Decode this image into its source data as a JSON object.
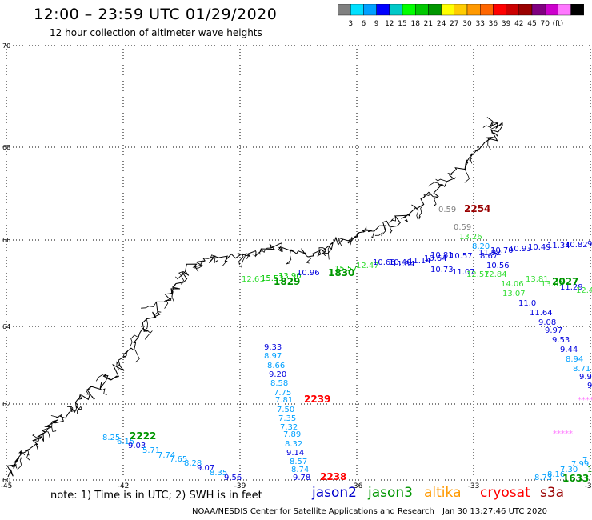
{
  "header": {
    "title": "12:00 – 23:59 UTC 01/29/2020",
    "subtitle": "12 hour collection of altimeter wave heights"
  },
  "colorbar": {
    "colors": [
      "#808080",
      "#00e0ff",
      "#00a0ff",
      "#0000ff",
      "#00c8c8",
      "#00ff00",
      "#00c800",
      "#009600",
      "#ffff00",
      "#ffcc00",
      "#ff9900",
      "#ff6600",
      "#ff0000",
      "#cc0000",
      "#990000",
      "#800080",
      "#cc00cc",
      "#ff77ff",
      "#000000"
    ],
    "labels": [
      "3",
      "6",
      "9",
      "12",
      "15",
      "18",
      "21",
      "24",
      "27",
      "30",
      "33",
      "36",
      "39",
      "42",
      "45",
      "70",
      "(ft)"
    ]
  },
  "map": {
    "lat_ticks": [
      "70",
      "68",
      "66",
      "64",
      "62",
      "60"
    ],
    "lon_ticks": [
      "-45",
      "-42",
      "-39",
      "-36",
      "-33",
      "-30"
    ],
    "gridlines": true,
    "coastline": "Greenland east coast"
  },
  "tracks": [
    {
      "satellite": "jason3",
      "time": "1829",
      "color": "#009600",
      "values": [
        {
          "text": "12.61",
          "color": "#33dd33"
        },
        {
          "text": "15.53",
          "color": "#00c800"
        },
        {
          "text": "13.90",
          "color": "#00c800"
        },
        {
          "text": "10.96",
          "color": "#0000dd"
        },
        {
          "text": "15.57",
          "color": "#00c800"
        },
        {
          "text": "12.47",
          "color": "#33dd33"
        },
        {
          "text": "10.68",
          "color": "#0000dd"
        },
        {
          "text": "10.40",
          "color": "#0000dd"
        },
        {
          "text": "11.84",
          "color": "#0000dd"
        },
        {
          "text": "11.14",
          "color": "#0000dd"
        },
        {
          "text": "10.64",
          "color": "#0000dd"
        },
        {
          "text": "10.81",
          "color": "#0000dd"
        },
        {
          "text": "10.73",
          "color": "#0000dd"
        }
      ]
    },
    {
      "satellite": "jason3",
      "time": "1830",
      "color": "#009600"
    },
    {
      "satellite": "cryosat",
      "time": "2254",
      "color": "#990000",
      "values": [
        {
          "text": "0.59",
          "color": "#808080"
        }
      ]
    },
    {
      "satellite": "jason3",
      "time": "2027",
      "color": "#009600",
      "values": [
        {
          "text": "0.59",
          "color": "#808080"
        },
        {
          "text": "13.26",
          "color": "#33dd33"
        },
        {
          "text": "8.20",
          "color": "#00a0ff"
        },
        {
          "text": "11.92",
          "color": "#0000dd"
        },
        {
          "text": "10.70",
          "color": "#0000dd"
        },
        {
          "text": "10.93",
          "color": "#0000dd"
        },
        {
          "text": "10.49",
          "color": "#0000dd"
        },
        {
          "text": "11.34",
          "color": "#0000dd"
        },
        {
          "text": "10.82",
          "color": "#0000dd"
        },
        {
          "text": "9",
          "color": "#0000dd"
        },
        {
          "text": "10.57",
          "color": "#0000dd"
        },
        {
          "text": "8.67",
          "color": "#0000dd"
        },
        {
          "text": "10.56",
          "color": "#0000dd"
        },
        {
          "text": "11.07",
          "color": "#0000dd"
        },
        {
          "text": "12.57",
          "color": "#33dd33"
        },
        {
          "text": "12.84",
          "color": "#33dd33"
        },
        {
          "text": "14.06",
          "color": "#33dd33"
        },
        {
          "text": "13.81",
          "color": "#33dd33"
        },
        {
          "text": "13.07",
          "color": "#33dd33"
        },
        {
          "text": "13.02",
          "color": "#33dd33"
        },
        {
          "text": "11.29",
          "color": "#0000dd"
        },
        {
          "text": "12.4",
          "color": "#33dd33"
        },
        {
          "text": "11.0",
          "color": "#0000dd"
        },
        {
          "text": "11.64",
          "color": "#0000dd"
        },
        {
          "text": "9.08",
          "color": "#0000dd"
        },
        {
          "text": "9.97",
          "color": "#0000dd"
        },
        {
          "text": "9.53",
          "color": "#0000dd"
        },
        {
          "text": "9.44",
          "color": "#0000dd"
        },
        {
          "text": "8.94",
          "color": "#00a0ff"
        },
        {
          "text": "8.71",
          "color": "#00a0ff"
        },
        {
          "text": "9.96",
          "color": "#0000dd"
        },
        {
          "text": "9.",
          "color": "#0000dd"
        },
        {
          "text": "8",
          "color": "#00a0ff"
        }
      ]
    },
    {
      "satellite": "cryosat",
      "time": "2239",
      "color": "#ff0000",
      "values": [
        {
          "text": "9.33",
          "color": "#0000dd"
        },
        {
          "text": "8.97",
          "color": "#00a0ff"
        },
        {
          "text": "8.66",
          "color": "#00a0ff"
        },
        {
          "text": "9.20",
          "color": "#0000dd"
        },
        {
          "text": "8.58",
          "color": "#00a0ff"
        },
        {
          "text": "7.75",
          "color": "#00a0ff"
        },
        {
          "text": "7.81",
          "color": "#00a0ff"
        },
        {
          "text": "7.50",
          "color": "#00a0ff"
        },
        {
          "text": "7.35",
          "color": "#00a0ff"
        },
        {
          "text": "7.32",
          "color": "#00a0ff"
        },
        {
          "text": "7.89",
          "color": "#00a0ff"
        },
        {
          "text": "8.32",
          "color": "#00a0ff"
        },
        {
          "text": "9.14",
          "color": "#0000dd"
        },
        {
          "text": "8.57",
          "color": "#00a0ff"
        },
        {
          "text": "8.74",
          "color": "#00a0ff"
        },
        {
          "text": "9.78",
          "color": "#0000dd"
        }
      ]
    },
    {
      "satellite": "cryosat",
      "time": "2238",
      "color": "#ff0000"
    },
    {
      "satellite": "jason3",
      "time": "2222",
      "color": "#009600",
      "values": [
        {
          "text": "8.25",
          "color": "#00a0ff"
        },
        {
          "text": "6.15",
          "color": "#00a0ff"
        },
        {
          "text": "9.03",
          "color": "#0000dd"
        },
        {
          "text": "5.71",
          "color": "#00a0ff"
        },
        {
          "text": "7.74",
          "color": "#00a0ff"
        },
        {
          "text": "7.65",
          "color": "#00a0ff"
        },
        {
          "text": "8.28",
          "color": "#00a0ff"
        },
        {
          "text": "9.07",
          "color": "#0000dd"
        },
        {
          "text": "8.35",
          "color": "#00a0ff"
        },
        {
          "text": "9.56",
          "color": "#0000dd"
        }
      ]
    },
    {
      "satellite": "jason3",
      "time": "1633",
      "color": "#009600",
      "values": [
        {
          "text": "8.73",
          "color": "#00a0ff"
        },
        {
          "text": "8.16",
          "color": "#00a0ff"
        },
        {
          "text": "7.30",
          "color": "#00a0ff"
        },
        {
          "text": "7.99",
          "color": "#00a0ff"
        },
        {
          "text": "7",
          "color": "#00a0ff"
        },
        {
          "text": "1",
          "color": "#009600"
        }
      ]
    },
    {
      "satellite": "s3a",
      "values": [
        {
          "text": "****",
          "color": "#ff77ff"
        },
        {
          "text": "*****",
          "color": "#ff77ff"
        }
      ]
    }
  ],
  "legend": {
    "note": "note:  1) Time is in UTC; 2) SWH is in feet",
    "satellites": [
      {
        "name": "jason2",
        "color": "#0000cc"
      },
      {
        "name": "jason3",
        "color": "#009600"
      },
      {
        "name": "altika",
        "color": "#ff9900"
      },
      {
        "name": "cryosat",
        "color": "#ff0000"
      },
      {
        "name": "s3a",
        "color": "#990000"
      }
    ]
  },
  "footer": {
    "credit": "NOAA/NESDIS Center for Satellite Applications and Research",
    "timestamp": "Jan 30 13:27:46 UTC 2020"
  }
}
